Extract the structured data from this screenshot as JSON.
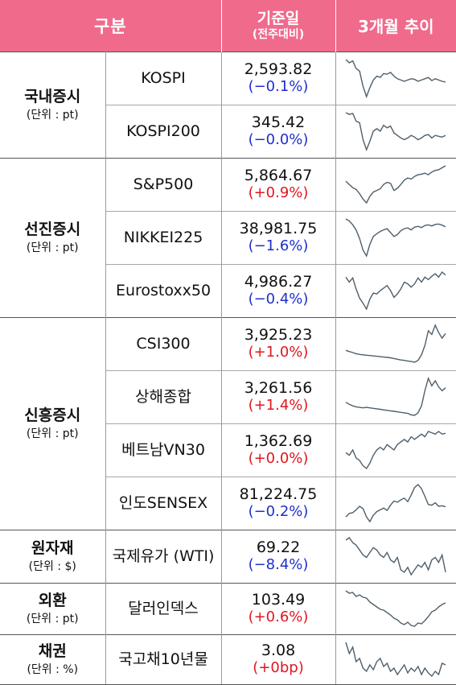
{
  "header": {
    "category": "구분",
    "date_label": "기준일",
    "date_sub": "(전주대비)",
    "trend": "3개월 추이"
  },
  "colors": {
    "header_bg": "#f06a8c",
    "negative": "#1f2fcb",
    "positive": "#e0171f",
    "sparkline": "#4f5f6b"
  },
  "groups": [
    {
      "name": "국내증시",
      "unit": "(단위 : pt)",
      "rows": [
        {
          "name": "KOSPI",
          "value": "2,593.82",
          "change": "(−0.1%)",
          "dir": "neg",
          "trend": [
            2770,
            2745,
            2760,
            2700,
            2680,
            2560,
            2480,
            2550,
            2610,
            2640,
            2630,
            2660,
            2655,
            2670,
            2640,
            2620,
            2610,
            2600,
            2610,
            2620,
            2615,
            2600,
            2610,
            2620,
            2630,
            2605,
            2620,
            2610,
            2600,
            2594
          ]
        },
        {
          "name": "KOSPI200",
          "value": "345.42",
          "change": "(−0.0%)",
          "dir": "neg",
          "trend": [
            372,
            370,
            371,
            362,
            360,
            340,
            328,
            338,
            350,
            353,
            350,
            357,
            354,
            356,
            348,
            345,
            342,
            340,
            342,
            345,
            343,
            340,
            342,
            345,
            346,
            342,
            345,
            344,
            343,
            345
          ]
        }
      ]
    },
    {
      "name": "선진증시",
      "unit": "(단위 : pt)",
      "rows": [
        {
          "name": "S&P500",
          "value": "5,864.67",
          "change": "(+0.9%)",
          "dir": "pos",
          "trend": [
            5580,
            5520,
            5460,
            5430,
            5350,
            5250,
            5180,
            5300,
            5380,
            5410,
            5440,
            5520,
            5560,
            5540,
            5410,
            5450,
            5520,
            5600,
            5640,
            5620,
            5670,
            5700,
            5710,
            5730,
            5700,
            5750,
            5780,
            5790,
            5830,
            5865
          ]
        },
        {
          "name": "NIKKEI225",
          "value": "38,981.75",
          "change": "(−1.6%)",
          "dir": "neg",
          "trend": [
            41000,
            40500,
            39500,
            38200,
            36000,
            33000,
            31500,
            34500,
            36500,
            37200,
            37800,
            38200,
            38500,
            37500,
            36500,
            37000,
            38000,
            38500,
            38700,
            38200,
            38900,
            39100,
            38800,
            39300,
            39500,
            39200,
            39600,
            39700,
            39400,
            38982
          ]
        },
        {
          "name": "Eurostoxx50",
          "value": "4,986.27",
          "change": "(−0.4%)",
          "dir": "neg",
          "trend": [
            4960,
            4900,
            4950,
            4820,
            4710,
            4650,
            4580,
            4700,
            4770,
            4760,
            4800,
            4830,
            4860,
            4800,
            4720,
            4760,
            4820,
            4900,
            4880,
            4840,
            4880,
            4950,
            4900,
            4960,
            4930,
            4970,
            5000,
            4960,
            5020,
            4986
          ]
        }
      ]
    },
    {
      "name": "신흥증시",
      "unit": "(단위 : pt)",
      "rows": [
        {
          "name": "CSI300",
          "value": "3,925.23",
          "change": "(+1.0%)",
          "dir": "pos",
          "trend": [
            3470,
            3440,
            3410,
            3380,
            3360,
            3350,
            3340,
            3330,
            3320,
            3310,
            3300,
            3290,
            3280,
            3270,
            3250,
            3230,
            3210,
            3200,
            3180,
            3170,
            3150,
            3200,
            3350,
            3600,
            4000,
            3900,
            4150,
            3950,
            3800,
            3925
          ]
        },
        {
          "name": "상해종합",
          "value": "3,261.56",
          "change": "(+1.4%)",
          "dir": "pos",
          "trend": [
            2970,
            2930,
            2900,
            2880,
            2870,
            2860,
            2870,
            2860,
            2850,
            2840,
            2830,
            2820,
            2810,
            2800,
            2790,
            2780,
            2770,
            2760,
            2750,
            2720,
            2710,
            2760,
            2900,
            3200,
            3450,
            3300,
            3400,
            3280,
            3200,
            3262
          ]
        },
        {
          "name": "베트남VN30",
          "value": "1,362.69",
          "change": "(+0.0%)",
          "dir": "pos",
          "trend": [
            1290,
            1280,
            1300,
            1270,
            1260,
            1240,
            1230,
            1250,
            1280,
            1300,
            1310,
            1300,
            1320,
            1310,
            1300,
            1320,
            1330,
            1340,
            1330,
            1350,
            1340,
            1350,
            1360,
            1350,
            1370,
            1365,
            1360,
            1370,
            1360,
            1363
          ]
        },
        {
          "name": "인도SENSEX",
          "value": "81,224.75",
          "change": "(−0.2%)",
          "dir": "neg",
          "trend": [
            79500,
            80100,
            80200,
            80700,
            81300,
            80900,
            79500,
            78700,
            79800,
            80400,
            80700,
            81000,
            80600,
            81500,
            82200,
            82000,
            82400,
            82700,
            82100,
            83200,
            84500,
            85000,
            84300,
            83000,
            81600,
            81500,
            81900,
            81300,
            81400,
            81225
          ]
        }
      ]
    },
    {
      "name": "원자재",
      "unit": "(단위 : $)",
      "rows": [
        {
          "name": "국제유가 (WTI)",
          "value": "69.22",
          "change": "(−8.4%)",
          "dir": "neg",
          "trend": [
            82,
            83,
            81,
            80,
            78,
            76,
            75,
            77,
            79,
            78,
            76,
            75,
            77,
            74,
            73,
            75,
            70,
            69,
            71,
            68,
            70,
            72,
            71,
            73,
            70,
            74,
            75,
            73,
            76,
            69
          ]
        }
      ]
    },
    {
      "name": "외환",
      "unit": "(단위 : pt)",
      "rows": [
        {
          "name": "달러인덱스",
          "value": "103.49",
          "change": "(+0.6%)",
          "dir": "pos",
          "trend": [
            105.0,
            104.7,
            104.8,
            104.3,
            104.5,
            104.2,
            104.1,
            103.6,
            103.3,
            103.0,
            102.7,
            102.6,
            102.3,
            102.0,
            101.6,
            101.4,
            101.0,
            100.8,
            101.1,
            100.7,
            100.6,
            101.0,
            100.9,
            101.3,
            101.8,
            102.4,
            102.6,
            103.0,
            103.3,
            103.5
          ]
        }
      ]
    },
    {
      "name": "채권",
      "unit": "(단위 : %)",
      "rows": [
        {
          "name": "국고채10년물",
          "value": "3.08",
          "change": "(+0bp)",
          "dir": "pos",
          "trend": [
            3.22,
            3.15,
            3.19,
            3.1,
            3.12,
            3.06,
            3.04,
            3.08,
            3.05,
            3.1,
            3.12,
            3.07,
            3.09,
            3.04,
            3.06,
            3.02,
            3.05,
            3.08,
            3.03,
            3.06,
            3.04,
            3.07,
            3.02,
            3.06,
            3.03,
            3.01,
            3.04,
            3.02,
            3.09,
            3.08
          ]
        }
      ]
    }
  ]
}
